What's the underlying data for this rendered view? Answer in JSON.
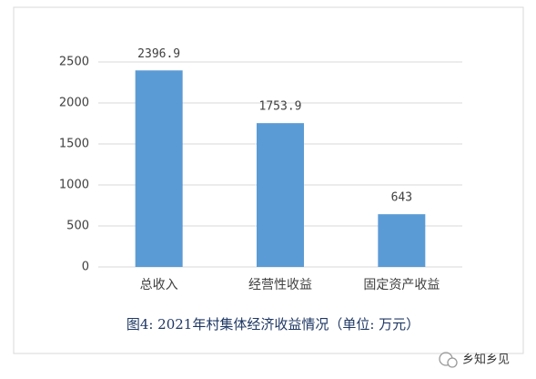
{
  "chart_data": {
    "type": "bar",
    "categories": [
      "总收入",
      "经营性收益",
      "固定资产收益"
    ],
    "values": [
      2396.9,
      1753.9,
      643
    ],
    "color": "#5b9bd5",
    "ylim": [
      0,
      2500
    ],
    "yticks": [
      0,
      500,
      1000,
      1500,
      2000,
      2500
    ],
    "grid": true,
    "caption": "图4: 2021年村集体经济收益情况（单位: 万元）",
    "watermark": "乡知乡见"
  }
}
